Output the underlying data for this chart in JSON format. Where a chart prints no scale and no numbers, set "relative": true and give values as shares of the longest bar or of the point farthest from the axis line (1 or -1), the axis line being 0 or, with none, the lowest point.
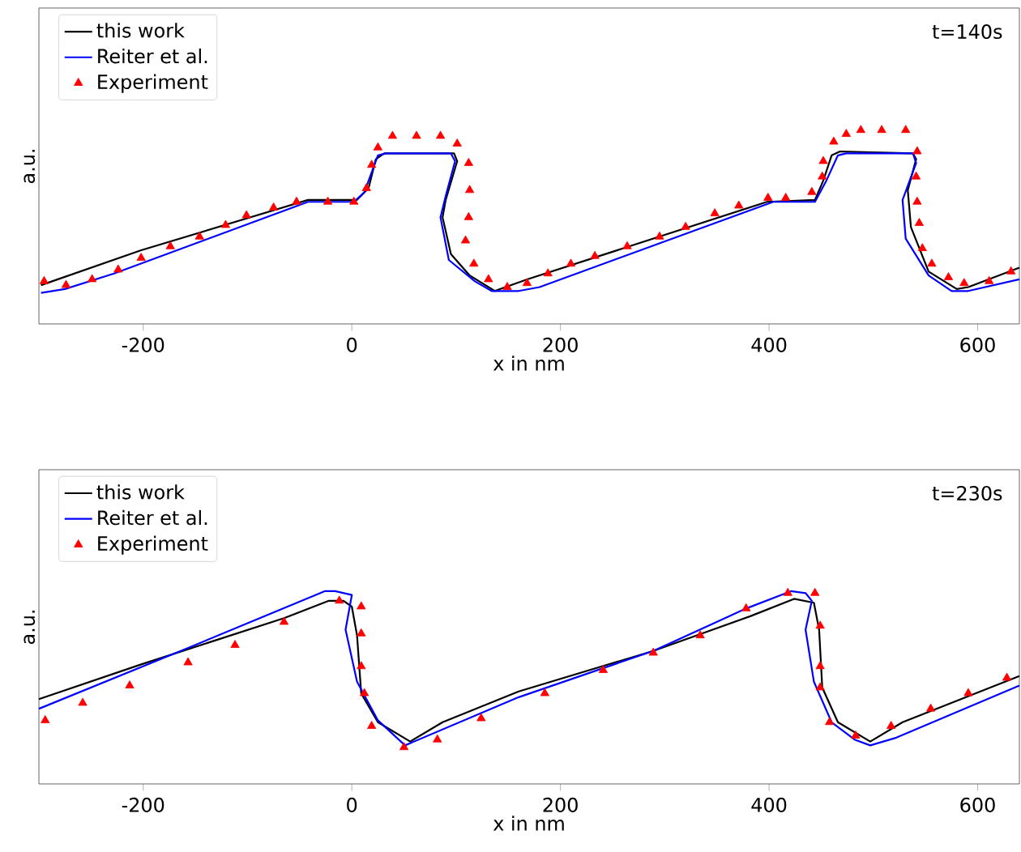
{
  "chart_data": [
    {
      "type": "line",
      "relative": true,
      "xlabel": "x in nm",
      "ylabel": "a.u.",
      "annotations": [
        "t=140s"
      ],
      "legend": "top left",
      "xlim": [
        -300,
        640
      ],
      "xticks": [
        -200,
        0,
        200,
        400,
        600
      ],
      "series": [
        {
          "name": "this work",
          "color": "#000000",
          "line_style": "solid",
          "x": [
            -298,
            -202,
            -42,
            5,
            16,
            23,
            31,
            98,
            101,
            90,
            87,
            95,
            113,
            137,
            168,
            398,
            444,
            452,
            460,
            468,
            538,
            541,
            533,
            536,
            553,
            580,
            591,
            640
          ],
          "values": [
            0.2,
            0.38,
            0.64,
            0.64,
            0.7,
            0.85,
            0.88,
            0.88,
            0.84,
            0.64,
            0.55,
            0.36,
            0.25,
            0.17,
            0.23,
            0.63,
            0.64,
            0.74,
            0.87,
            0.89,
            0.88,
            0.85,
            0.69,
            0.5,
            0.27,
            0.18,
            0.19,
            0.29
          ]
        },
        {
          "name": "Reiter et al.",
          "color": "#0000ff",
          "line_style": "solid",
          "x": [
            -298,
            -275,
            -228,
            -42,
            2,
            12,
            25,
            33,
            95,
            99,
            90,
            85,
            93,
            118,
            134,
            160,
            180,
            404,
            444,
            455,
            466,
            474,
            538,
            541,
            528,
            531,
            553,
            575,
            591,
            640
          ],
          "values": [
            0.16,
            0.18,
            0.26,
            0.63,
            0.63,
            0.68,
            0.87,
            0.88,
            0.88,
            0.84,
            0.66,
            0.55,
            0.33,
            0.22,
            0.17,
            0.17,
            0.19,
            0.63,
            0.63,
            0.74,
            0.87,
            0.88,
            0.88,
            0.83,
            0.64,
            0.44,
            0.25,
            0.17,
            0.17,
            0.23
          ]
        },
        {
          "name": "Experiment",
          "color": "#ff0000",
          "type": "scatter",
          "marker": "triangle",
          "x": [
            -295,
            -274,
            -249,
            -224,
            -202,
            -174,
            -146,
            -121,
            -101,
            -75,
            -53,
            -23,
            2,
            14,
            19,
            25,
            39,
            62,
            85,
            101,
            112,
            113,
            112,
            109,
            117,
            131,
            149,
            168,
            188,
            210,
            233,
            264,
            295,
            320,
            348,
            371,
            399,
            416,
            441,
            451,
            452,
            462,
            474,
            488,
            508,
            531,
            542,
            541,
            542,
            544,
            547,
            556,
            572,
            587,
            611,
            632
          ],
          "values": [
            0.22,
            0.2,
            0.23,
            0.28,
            0.34,
            0.4,
            0.45,
            0.51,
            0.56,
            0.6,
            0.63,
            0.63,
            0.63,
            0.7,
            0.82,
            0.91,
            0.97,
            0.97,
            0.97,
            0.93,
            0.83,
            0.69,
            0.55,
            0.43,
            0.31,
            0.23,
            0.19,
            0.21,
            0.26,
            0.31,
            0.35,
            0.4,
            0.45,
            0.5,
            0.57,
            0.61,
            0.65,
            0.65,
            0.68,
            0.76,
            0.84,
            0.94,
            0.98,
            1.0,
            1.0,
            1.0,
            0.89,
            0.76,
            0.63,
            0.52,
            0.39,
            0.31,
            0.24,
            0.21,
            0.22,
            0.27
          ]
        }
      ]
    },
    {
      "type": "line",
      "relative": true,
      "xlabel": "x in nm",
      "ylabel": "a.u.",
      "annotations": [
        "t=230s"
      ],
      "legend": "top left",
      "xlim": [
        -300,
        640
      ],
      "xticks": [
        -200,
        0,
        200,
        400,
        600
      ],
      "series": [
        {
          "name": "this work",
          "color": "#000000",
          "line_style": "solid",
          "x": [
            -300,
            -202,
            -65,
            -22,
            -8,
            0,
            5,
            9,
            25,
            56,
            87,
            160,
            289,
            382,
            424,
            443,
            448,
            451,
            466,
            497,
            528,
            640
          ],
          "values": [
            0.44,
            0.62,
            0.86,
            0.95,
            0.95,
            0.92,
            0.77,
            0.47,
            0.32,
            0.22,
            0.32,
            0.48,
            0.69,
            0.87,
            0.96,
            0.94,
            0.8,
            0.5,
            0.32,
            0.22,
            0.32,
            0.56
          ]
        },
        {
          "name": "Reiter et al.",
          "color": "#0000ff",
          "line_style": "solid",
          "x": [
            -300,
            -155,
            -26,
            -16,
            0,
            -2,
            -6,
            5,
            25,
            51,
            160,
            289,
            378,
            421,
            435,
            441,
            435,
            443,
            460,
            482,
            497,
            522,
            640
          ],
          "values": [
            0.39,
            0.71,
            1.0,
            1.0,
            0.98,
            0.92,
            0.8,
            0.53,
            0.33,
            0.2,
            0.45,
            0.69,
            0.91,
            1.0,
            0.99,
            0.95,
            0.8,
            0.53,
            0.32,
            0.23,
            0.2,
            0.24,
            0.51
          ]
        },
        {
          "name": "Experiment",
          "color": "#ff0000",
          "type": "scatter",
          "marker": "triangle",
          "x": [
            -294,
            -258,
            -213,
            -157,
            -112,
            -65,
            -12,
            9,
            9,
            9,
            12,
            19,
            50,
            82,
            124,
            185,
            241,
            289,
            334,
            378,
            418,
            444,
            449,
            449,
            449,
            458,
            483,
            517,
            555,
            591,
            628
          ],
          "values": [
            0.33,
            0.42,
            0.51,
            0.63,
            0.72,
            0.84,
            0.95,
            0.92,
            0.78,
            0.61,
            0.47,
            0.3,
            0.19,
            0.23,
            0.34,
            0.47,
            0.59,
            0.68,
            0.77,
            0.91,
            0.99,
            0.99,
            0.82,
            0.61,
            0.5,
            0.32,
            0.25,
            0.3,
            0.39,
            0.47,
            0.55
          ]
        }
      ]
    }
  ]
}
